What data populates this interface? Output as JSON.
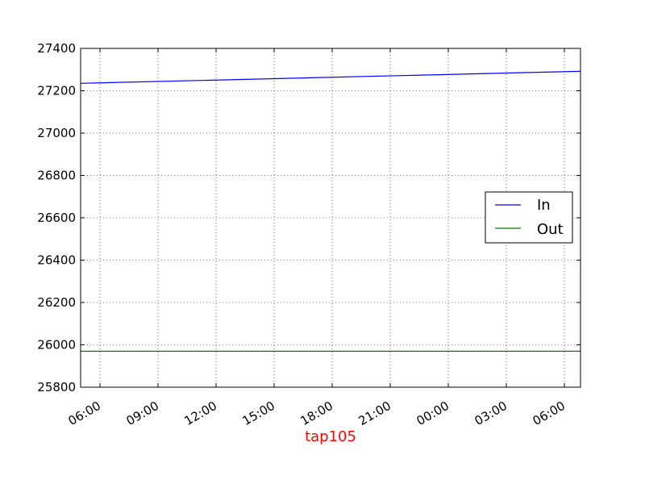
{
  "chart_data": {
    "type": "line",
    "title": "",
    "xlabel": "tap105",
    "xlabel_color": "#ff0000",
    "ylabel": "",
    "x_ticks": [
      "06:00",
      "09:00",
      "12:00",
      "15:00",
      "18:00",
      "21:00",
      "00:00",
      "03:00",
      "06:00"
    ],
    "x_range": [
      "05:00",
      "06:50 (+1 day)"
    ],
    "y_ticks": [
      25800,
      26000,
      26200,
      26400,
      26600,
      26800,
      27000,
      27200,
      27400
    ],
    "ylim": [
      25800,
      27400
    ],
    "grid": true,
    "legend_position": "center-right",
    "series": [
      {
        "name": "In",
        "color": "#0000ff",
        "x": [
          "05:00",
          "06:50 (+1 day)"
        ],
        "y": [
          27235,
          27292
        ]
      },
      {
        "name": "Out",
        "color": "#008000",
        "x": [
          "05:00",
          "06:50 (+1 day)"
        ],
        "y": [
          25970,
          25970
        ]
      }
    ]
  }
}
